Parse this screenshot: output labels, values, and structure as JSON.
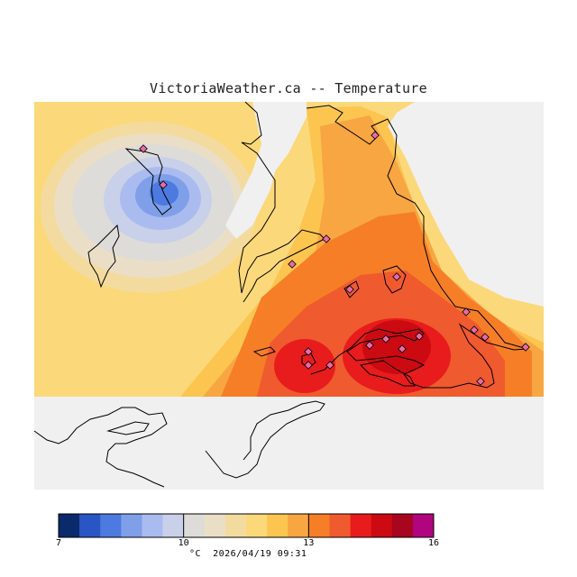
{
  "map": {
    "title": "VictoriaWeather.ca -- Temperature",
    "variable": "Temperature",
    "unit": "°C",
    "timestamp": "2026/04/19 09:31",
    "colors": {
      "no_data": "#f0f0f0",
      "land_outline": "#000000",
      "station_marker": "#e86aa8"
    }
  },
  "legend": {
    "min": 7,
    "max": 16,
    "tick_labels": [
      "7",
      "10",
      "13",
      "16"
    ],
    "tick_values": [
      7,
      10,
      13,
      16
    ],
    "footer": "°C  2026/04/19 09:31",
    "bins": [
      "#0b2a6b",
      "#2a55c4",
      "#4d7ae0",
      "#7f9fe8",
      "#aabbf0",
      "#c8d0ea",
      "#dedcd8",
      "#eadfc6",
      "#f3dba0",
      "#fbd87a",
      "#fbc550",
      "#f7a642",
      "#f57e27",
      "#ef5a2e",
      "#e81c1c",
      "#cc0a12",
      "#a8051e",
      "#b0057e"
    ]
  }
}
